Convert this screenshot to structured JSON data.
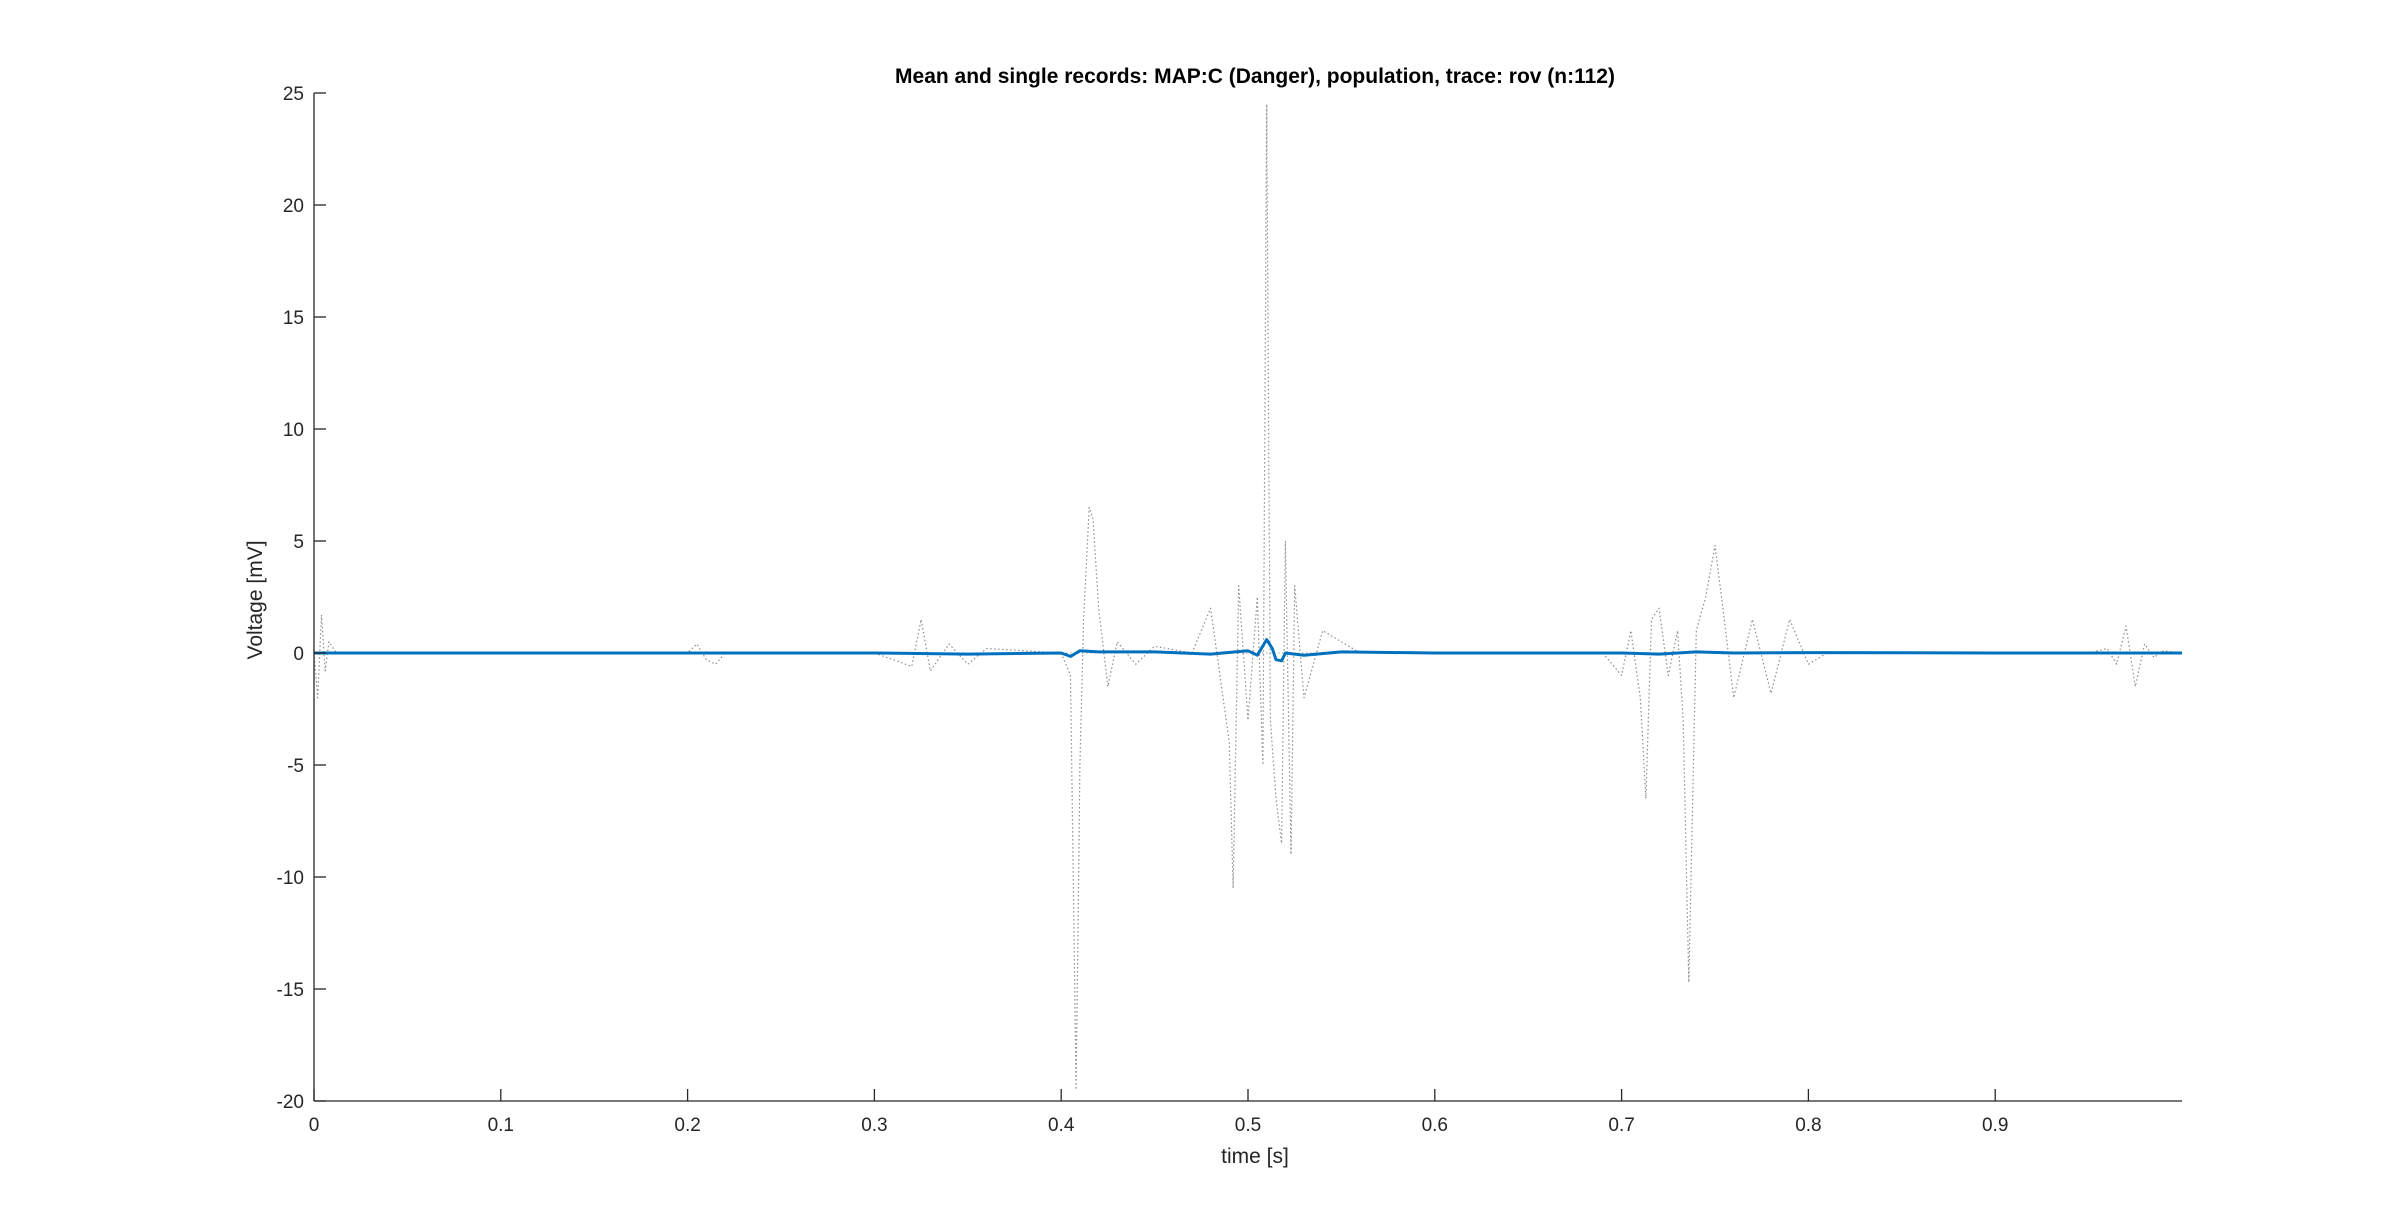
{
  "chart_data": {
    "type": "line",
    "title": "Mean and single records: MAP:C (Danger), population, trace: rov (n:112)",
    "xlabel": "time [s]",
    "ylabel": "Voltage [mV]",
    "xlim": [
      0,
      1
    ],
    "ylim": [
      -20,
      25
    ],
    "xticks": [
      0,
      0.1,
      0.2,
      0.3,
      0.4,
      0.5,
      0.6,
      0.7,
      0.8,
      0.9
    ],
    "xtick_labels": [
      "0",
      "0.1",
      "0.2",
      "0.3",
      "0.4",
      "0.5",
      "0.6",
      "0.7",
      "0.8",
      "0.9"
    ],
    "yticks": [
      -20,
      -15,
      -10,
      -5,
      0,
      5,
      10,
      15,
      20,
      25
    ],
    "ytick_labels": [
      "-20",
      "-15",
      "-10",
      "-5",
      "0",
      "5",
      "10",
      "15",
      "20",
      "25"
    ],
    "grid": false,
    "legend": "none",
    "colors": {
      "mean": "#0072BD",
      "single": "#8c8c8c",
      "axes": "#262626"
    },
    "series": [
      {
        "role": "single-records",
        "style": "dotted",
        "traces": [
          {
            "x": [
              0,
              0.002,
              0.004,
              0.006,
              0.008,
              0.012,
              0.2,
              0.205,
              0.21,
              0.215,
              0.22,
              0.3,
              0.32,
              0.325,
              0.33,
              0.34,
              0.35,
              0.36,
              0.4
            ],
            "y": [
              0,
              -2.0,
              1.7,
              -0.8,
              0.5,
              0,
              0,
              0.4,
              -0.3,
              -0.5,
              0,
              0,
              -0.6,
              1.5,
              -0.8,
              0.4,
              -0.5,
              0.2,
              0
            ]
          },
          {
            "x": [
              0.4,
              0.405,
              0.408,
              0.41,
              0.412,
              0.415,
              0.417,
              0.42,
              0.425,
              0.43,
              0.44,
              0.45,
              0.47
            ],
            "y": [
              0,
              -1.0,
              -19.5,
              -5.0,
              1.5,
              6.5,
              6.0,
              2.0,
              -1.5,
              0.5,
              -0.5,
              0.3,
              0
            ]
          },
          {
            "x": [
              0.47,
              0.48,
              0.49,
              0.492,
              0.495,
              0.5,
              0.505,
              0.508,
              0.51,
              0.512,
              0.515,
              0.518,
              0.52,
              0.523,
              0.525,
              0.53,
              0.54,
              0.56
            ],
            "y": [
              0,
              2.0,
              -4.0,
              -10.5,
              3.0,
              -3.0,
              2.5,
              -5.0,
              24.5,
              -3.0,
              -6.5,
              -8.5,
              5.0,
              -9.0,
              3.0,
              -2.0,
              1.0,
              0
            ]
          },
          {
            "x": [
              0.69,
              0.7,
              0.705,
              0.71,
              0.713,
              0.716,
              0.72,
              0.725,
              0.73,
              0.733,
              0.736,
              0.74,
              0.745,
              0.75,
              0.755,
              0.76,
              0.77,
              0.78,
              0.79,
              0.8,
              0.81
            ],
            "y": [
              0,
              -1.0,
              1.0,
              -2.0,
              -6.5,
              1.5,
              2.0,
              -1.0,
              1.0,
              -3.0,
              -14.7,
              1.0,
              2.5,
              4.8,
              1.5,
              -2.0,
              1.5,
              -1.8,
              1.5,
              -0.5,
              0
            ]
          },
          {
            "x": [
              0.95,
              0.96,
              0.965,
              0.97,
              0.975,
              0.98,
              0.985,
              0.99,
              1.0
            ],
            "y": [
              0,
              0.2,
              -0.5,
              1.2,
              -1.5,
              0.4,
              -0.2,
              0.1,
              0
            ]
          }
        ]
      },
      {
        "role": "mean",
        "style": "solid",
        "x": [
          0,
          0.1,
          0.2,
          0.3,
          0.35,
          0.4,
          0.405,
          0.41,
          0.42,
          0.45,
          0.48,
          0.5,
          0.505,
          0.51,
          0.513,
          0.515,
          0.518,
          0.52,
          0.53,
          0.55,
          0.6,
          0.7,
          0.72,
          0.74,
          0.76,
          0.8,
          0.9,
          1.0
        ],
        "y": [
          0,
          0,
          0,
          0,
          -0.05,
          0,
          -0.15,
          0.1,
          0.05,
          0.05,
          -0.05,
          0.1,
          -0.1,
          0.6,
          0.2,
          -0.3,
          -0.35,
          0,
          -0.1,
          0.05,
          0,
          0,
          -0.05,
          0.05,
          0,
          0.02,
          0,
          0
        ]
      }
    ]
  }
}
